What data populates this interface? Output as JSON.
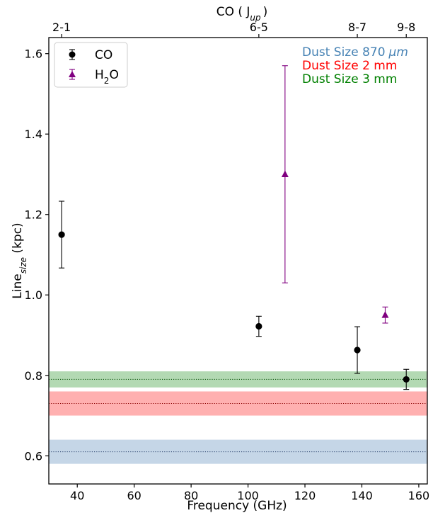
{
  "chart_data": {
    "type": "scatter",
    "xlabel": "Frequency (GHz)",
    "ylabel": "Line",
    "ylabel_sub": "size",
    "ylabel_unit": " (kpc)",
    "top_xlabel": "CO ( J",
    "top_xlabel_sub": "up",
    "top_xlabel_end": ")",
    "xlim": [
      30,
      163
    ],
    "ylim": [
      0.53,
      1.64
    ],
    "xticks": [
      40,
      60,
      80,
      100,
      120,
      140,
      160
    ],
    "yticks": [
      0.6,
      0.8,
      1.0,
      1.2,
      1.4,
      1.6
    ],
    "top_ticks": [
      {
        "x": 34.5,
        "label": "2-1"
      },
      {
        "x": 103.8,
        "label": "6-5"
      },
      {
        "x": 138.4,
        "label": "8-7"
      },
      {
        "x": 155.6,
        "label": "9-8"
      }
    ],
    "series": [
      {
        "name": "CO",
        "marker": "circle",
        "color": "#000000",
        "x": [
          34.5,
          103.8,
          138.4,
          155.6
        ],
        "y": [
          1.15,
          0.922,
          0.863,
          0.79
        ],
        "yerr_low": [
          0.083,
          0.025,
          0.058,
          0.025
        ],
        "yerr_high": [
          0.083,
          0.025,
          0.058,
          0.025
        ]
      },
      {
        "name": "H",
        "name_sub": "2",
        "name_end": "O",
        "marker": "triangle",
        "color": "#800080",
        "x": [
          113.0,
          148.2
        ],
        "y": [
          1.3,
          0.95
        ],
        "yerr_low": [
          0.27,
          0.02
        ],
        "yerr_high": [
          0.27,
          0.02
        ]
      }
    ],
    "bands": [
      {
        "name": "Dust Size 870",
        "unit": "μm",
        "center": 0.61,
        "low": 0.58,
        "high": 0.64,
        "fill": "#c5d6e7",
        "line": "#1f3a66",
        "text_color": "#4682b4"
      },
      {
        "name": "Dust Size 2 mm",
        "unit": "",
        "center": 0.73,
        "low": 0.7,
        "high": 0.76,
        "fill": "#ffb0b0",
        "line": "#8b0000",
        "text_color": "#ff0000"
      },
      {
        "name": "Dust Size 3 mm",
        "unit": "",
        "center": 0.79,
        "low": 0.77,
        "high": 0.81,
        "fill": "#b3d9b3",
        "line": "#004d00",
        "text_color": "#008000"
      }
    ],
    "legend_position": "top-left",
    "grid": false
  }
}
